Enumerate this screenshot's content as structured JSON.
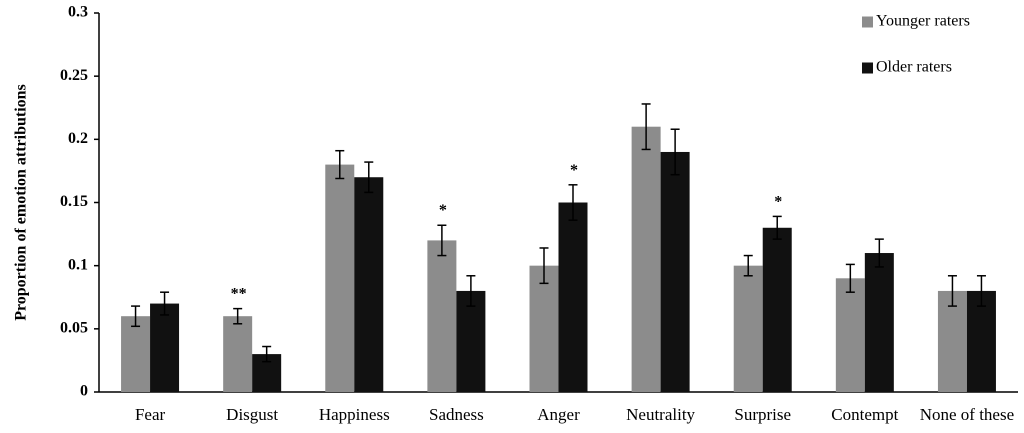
{
  "chart_data": {
    "type": "bar",
    "title": "",
    "xlabel": "",
    "ylabel": "Proportion  of emotion attributions",
    "ylim": [
      0,
      0.3
    ],
    "yticks": [
      "0",
      "0.05",
      "0.1",
      "0.15",
      "0.2",
      "0.25",
      "0.3"
    ],
    "ytick_values": [
      0,
      0.05,
      0.1,
      0.15,
      0.2,
      0.25,
      0.3
    ],
    "categories": [
      "Fear",
      "Disgust",
      "Happiness",
      "Sadness",
      "Anger",
      "Neutrality",
      "Surprise",
      "Contempt",
      "None of these"
    ],
    "series": [
      {
        "name": "Younger raters",
        "color": "#8c8c8c",
        "values": [
          0.06,
          0.06,
          0.18,
          0.12,
          0.1,
          0.21,
          0.1,
          0.09,
          0.08
        ],
        "errors": [
          0.008,
          0.006,
          0.011,
          0.012,
          0.014,
          0.018,
          0.008,
          0.011,
          0.012
        ]
      },
      {
        "name": "Older raters",
        "color": "#111111",
        "values": [
          0.07,
          0.03,
          0.17,
          0.08,
          0.15,
          0.19,
          0.13,
          0.11,
          0.08
        ],
        "errors": [
          0.009,
          0.006,
          0.012,
          0.012,
          0.014,
          0.018,
          0.009,
          0.011,
          0.012
        ]
      }
    ],
    "significance": [
      "",
      "**",
      "",
      "*",
      "*",
      "",
      "*",
      "",
      ""
    ],
    "legend_position": "top-right",
    "grid": false
  }
}
